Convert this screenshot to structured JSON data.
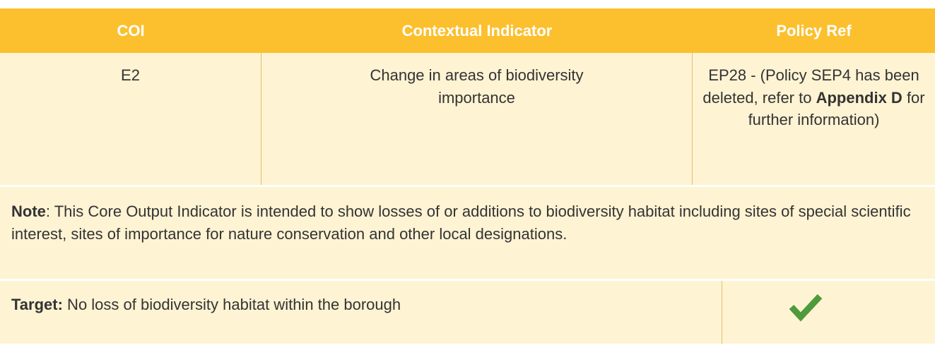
{
  "header": {
    "columns": [
      "COI",
      "Contextual Indicator",
      "Policy Ref"
    ]
  },
  "row": {
    "coi": "E2",
    "indicator": "Change in areas of biodiversity importance",
    "policy_ref": [
      "EP28 - (Policy SEP4 has been deleted, refer to ",
      "Appendix D",
      " for further information)"
    ]
  },
  "note": {
    "label": "Note",
    "text": ": This Core Output Indicator is intended to show losses of or additions to biodiversity habitat including sites of special scientific interest, sites of importance for nature conservation and other local designations."
  },
  "target": {
    "label": "Target:",
    "text": " No loss of biodiversity habitat within the borough"
  }
}
